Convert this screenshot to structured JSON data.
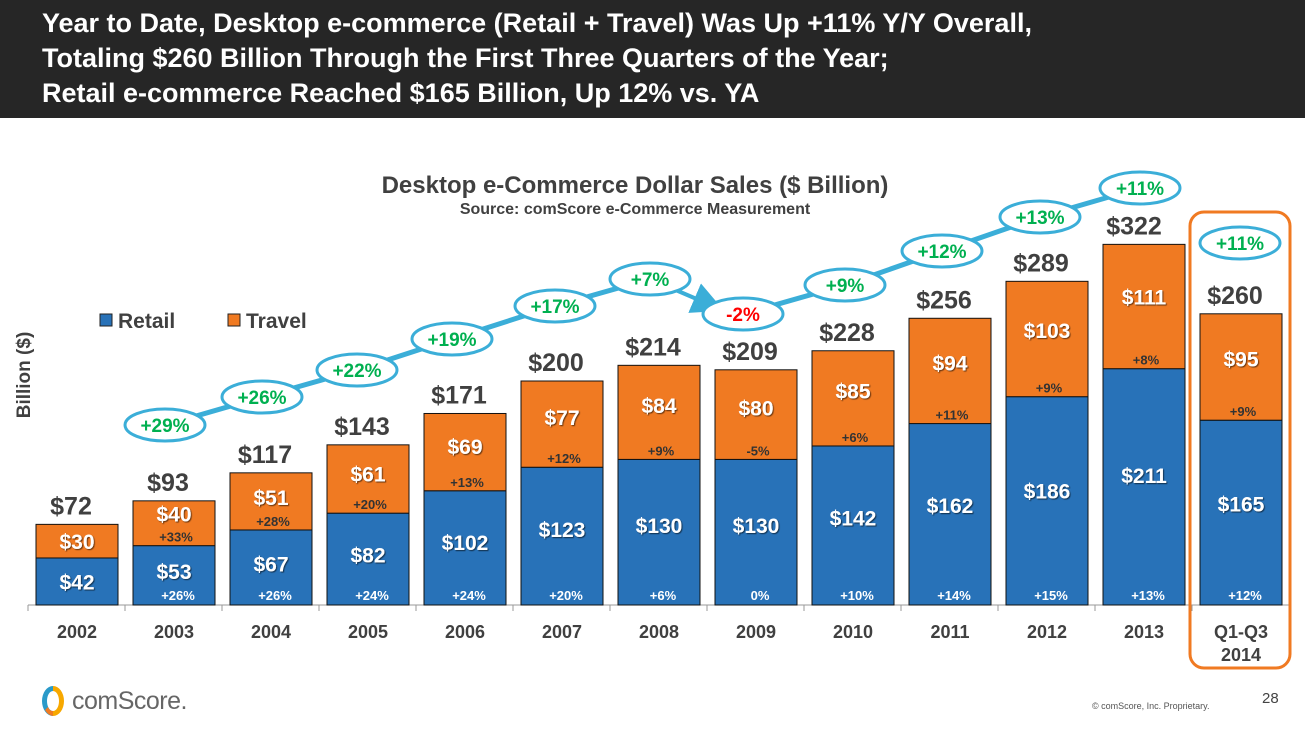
{
  "header": {
    "lines": [
      "Year to Date, Desktop e-commerce (Retail + Travel) Was Up +11% Y/Y Overall,",
      "Totaling $260 Billion Through the First Three Quarters of the Year;",
      "Retail e-commerce Reached $165 Billion, Up 12% vs. YA"
    ]
  },
  "chart_data": {
    "type": "bar",
    "stacked": true,
    "title": "Desktop e-Commerce Dollar Sales ($ Billion)",
    "subtitle": "Source: comScore e-Commerce Measurement",
    "ylabel": "Billion ($)",
    "legend_placement": "top-left",
    "grid": false,
    "categories": [
      "2002",
      "2003",
      "2004",
      "2005",
      "2006",
      "2007",
      "2008",
      "2009",
      "2010",
      "2011",
      "2012",
      "2013",
      "Q1-Q3\n2014"
    ],
    "series": [
      {
        "name": "Retail",
        "color": "#2872B8",
        "values": [
          42,
          53,
          67,
          82,
          102,
          123,
          130,
          130,
          142,
          162,
          186,
          211,
          165
        ],
        "value_labels": [
          "$42",
          "$53",
          "$67",
          "$82",
          "$102",
          "$123",
          "$130",
          "$130",
          "$142",
          "$162",
          "$186",
          "$211",
          "$165"
        ],
        "growth_labels": [
          "",
          "+26%",
          "+26%",
          "+24%",
          "+24%",
          "+20%",
          "+6%",
          "0%",
          "+10%",
          "+14%",
          "+15%",
          "+13%",
          "+12%"
        ]
      },
      {
        "name": "Travel",
        "color": "#F07A22",
        "values": [
          30,
          40,
          51,
          61,
          69,
          77,
          84,
          80,
          85,
          94,
          103,
          111,
          95
        ],
        "value_labels": [
          "$30",
          "$40",
          "$51",
          "$61",
          "$69",
          "$77",
          "$84",
          "$80",
          "$85",
          "$94",
          "$103",
          "$111",
          "$95"
        ],
        "growth_labels": [
          "",
          "+33%",
          "+28%",
          "+20%",
          "+13%",
          "+12%",
          "+9%",
          "-5%",
          "+6%",
          "+11%",
          "+9%",
          "+8%",
          "+9%"
        ]
      }
    ],
    "totals": [
      72,
      93,
      117,
      143,
      171,
      200,
      214,
      209,
      228,
      256,
      289,
      322,
      260
    ],
    "total_labels": [
      "$72",
      "$93",
      "$117",
      "$143",
      "$171",
      "$200",
      "$214",
      "$209",
      "$228",
      "$256",
      "$289",
      "$322",
      "$260"
    ],
    "total_growth_labels": [
      "",
      "+29%",
      "+26%",
      "+22%",
      "+19%",
      "+17%",
      "+7%",
      "-2%",
      "+9%",
      "+12%",
      "+13%",
      "+11%",
      "+11%"
    ],
    "colors": {
      "positive_growth": "#00B050",
      "negative_growth": "#FF0000",
      "trend_line": "#3BAED8",
      "highlight_box": "#F07A22"
    },
    "highlighted_category": "Q1-Q3\n2014"
  },
  "footer": {
    "logo_text": "comScore.",
    "copyright": "© comScore, Inc. Proprietary.",
    "page_number": "28"
  }
}
